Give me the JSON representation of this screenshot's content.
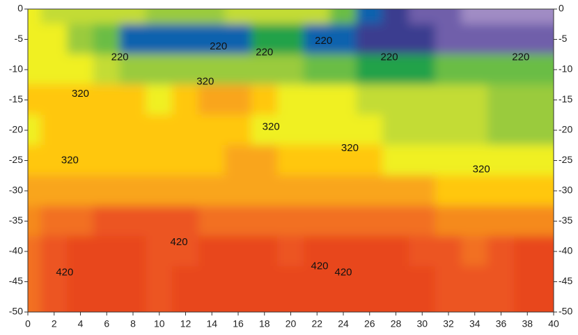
{
  "chart_data": {
    "type": "contour",
    "x": [
      0,
      2,
      4,
      6,
      8,
      10,
      12,
      14,
      16,
      18,
      20,
      22,
      24,
      26,
      28,
      30,
      32,
      34,
      36,
      38,
      40
    ],
    "y": [
      0,
      -5,
      -10,
      -15,
      -20,
      -25,
      -30,
      -35,
      -40,
      -45,
      -50
    ],
    "z": [
      [
        300,
        295,
        290,
        285,
        280,
        275,
        275,
        275,
        280,
        285,
        290,
        280,
        250,
        200,
        185,
        175,
        165,
        155,
        150,
        150,
        150
      ],
      [
        310,
        300,
        275,
        250,
        215,
        210,
        215,
        215,
        215,
        220,
        225,
        215,
        205,
        195,
        185,
        180,
        175,
        170,
        165,
        165,
        165
      ],
      [
        310,
        310,
        300,
        285,
        275,
        270,
        270,
        270,
        270,
        265,
        260,
        250,
        240,
        235,
        235,
        235,
        240,
        240,
        240,
        240,
        240
      ],
      [
        320,
        325,
        335,
        330,
        320,
        310,
        330,
        345,
        340,
        320,
        315,
        305,
        300,
        290,
        285,
        280,
        280,
        280,
        275,
        275,
        275
      ],
      [
        315,
        320,
        330,
        325,
        322,
        320,
        325,
        335,
        330,
        315,
        310,
        305,
        305,
        300,
        295,
        290,
        285,
        280,
        270,
        270,
        270
      ],
      [
        320,
        325,
        330,
        335,
        335,
        325,
        325,
        335,
        340,
        340,
        335,
        330,
        325,
        320,
        315,
        315,
        310,
        305,
        300,
        300,
        300
      ],
      [
        345,
        350,
        355,
        355,
        355,
        355,
        350,
        350,
        355,
        355,
        355,
        355,
        345,
        340,
        340,
        340,
        335,
        330,
        325,
        325,
        325
      ],
      [
        370,
        385,
        395,
        400,
        400,
        400,
        400,
        395,
        395,
        390,
        390,
        385,
        385,
        380,
        380,
        380,
        375,
        370,
        365,
        365,
        365
      ],
      [
        380,
        410,
        425,
        425,
        420,
        415,
        415,
        430,
        425,
        425,
        415,
        420,
        420,
        420,
        420,
        410,
        400,
        395,
        405,
        420,
        420
      ],
      [
        385,
        410,
        430,
        430,
        420,
        415,
        420,
        430,
        425,
        425,
        420,
        420,
        425,
        420,
        425,
        420,
        405,
        400,
        415,
        425,
        425
      ],
      [
        385,
        410,
        430,
        430,
        420,
        415,
        420,
        430,
        425,
        425,
        420,
        420,
        425,
        420,
        425,
        420,
        405,
        400,
        415,
        425,
        425
      ]
    ],
    "levels": [
      160,
      180,
      200,
      220,
      240,
      260,
      280,
      300,
      320,
      340,
      360,
      380,
      400,
      420
    ],
    "colors": [
      "#a08cc4",
      "#6f5faa",
      "#3b3d8f",
      "#0e62ae",
      "#21a24a",
      "#6abd45",
      "#9acb3c",
      "#c3dc35",
      "#f0f020",
      "#ffc70b",
      "#f9a51b",
      "#f58a1f",
      "#f26f21",
      "#ec5522",
      "#e8461e"
    ],
    "contour_labels": [
      {
        "value": 220,
        "x": 7,
        "y": -8
      },
      {
        "value": 220,
        "x": 14.5,
        "y": -6.2
      },
      {
        "value": 220,
        "x": 18,
        "y": -7.2
      },
      {
        "value": 220,
        "x": 22.5,
        "y": -5.3
      },
      {
        "value": 220,
        "x": 27.5,
        "y": -8
      },
      {
        "value": 220,
        "x": 37.5,
        "y": -8
      },
      {
        "value": 320,
        "x": 4,
        "y": -14
      },
      {
        "value": 320,
        "x": 13.5,
        "y": -12
      },
      {
        "value": 320,
        "x": 18.5,
        "y": -19.5
      },
      {
        "value": 320,
        "x": 24.5,
        "y": -23
      },
      {
        "value": 320,
        "x": 3.2,
        "y": -25
      },
      {
        "value": 320,
        "x": 34.5,
        "y": -26.5
      },
      {
        "value": 420,
        "x": 11.5,
        "y": -38.5
      },
      {
        "value": 420,
        "x": 2.8,
        "y": -43.5
      },
      {
        "value": 420,
        "x": 22.2,
        "y": -42.5
      },
      {
        "value": 420,
        "x": 24,
        "y": -43.5
      }
    ],
    "xlim": [
      0,
      40
    ],
    "ylim": [
      -50,
      0
    ],
    "xticks": [
      0,
      2,
      4,
      6,
      8,
      10,
      12,
      14,
      16,
      18,
      20,
      22,
      24,
      26,
      28,
      30,
      32,
      34,
      36,
      38,
      40
    ],
    "yticks": [
      0,
      -5,
      -10,
      -15,
      -20,
      -25,
      -30,
      -35,
      -40,
      -45,
      -50
    ]
  }
}
